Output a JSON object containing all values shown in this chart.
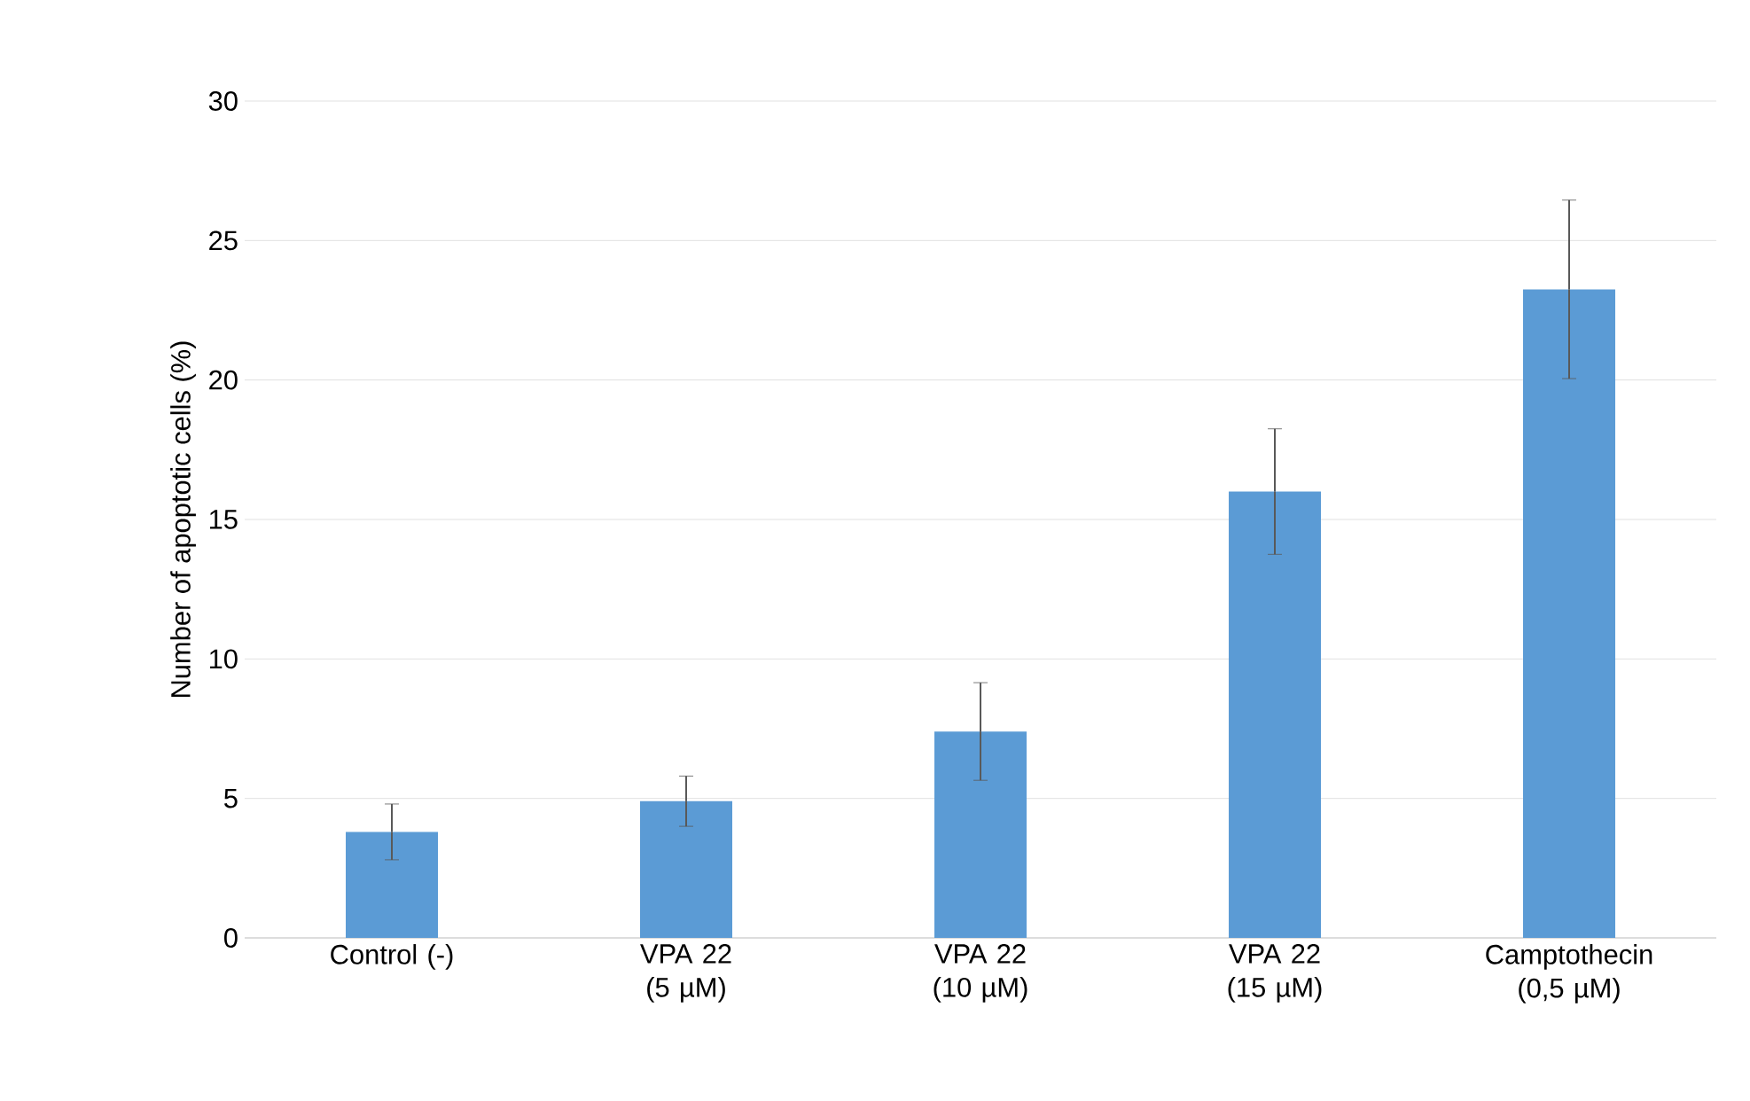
{
  "chart_data": {
    "type": "bar",
    "ylabel": "Number of apoptotic cells (%)",
    "categories": [
      "Control (-)",
      "VPA 22 (5 µM)",
      "VPA 22 (10 µM)",
      "VPA 22 (15 µM)",
      "Camptothecin (0,5 µM)"
    ],
    "values": [
      3.8,
      4.9,
      7.4,
      16.0,
      23.25
    ],
    "errors": [
      1.0,
      0.9,
      1.75,
      2.25,
      3.2
    ],
    "color": "#5b9bd5",
    "ylim": [
      0,
      30
    ],
    "yticks": [
      0,
      5,
      10,
      15,
      20,
      25,
      30
    ],
    "grid": "y"
  }
}
